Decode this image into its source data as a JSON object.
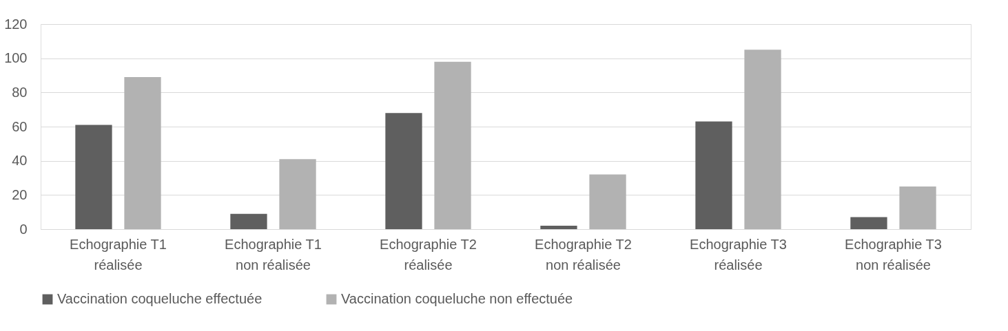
{
  "chart_data": {
    "type": "bar",
    "categories": [
      "Echographie T1 réalisée",
      "Echographie T1 non réalisée",
      "Echographie T2 réalisée",
      "Echographie T2 non réalisée",
      "Echographie T3 réalisée",
      "Echographie T3 non réalisée"
    ],
    "series": [
      {
        "name": "Vaccination coqueluche effectuée",
        "color": "#5f5f5f",
        "values": [
          61,
          9,
          68,
          2,
          63,
          7
        ]
      },
      {
        "name": "Vaccination coqueluche non effectuée",
        "color": "#b2b2b2",
        "values": [
          89,
          41,
          98,
          32,
          105,
          25
        ]
      }
    ],
    "ylim": [
      0,
      120
    ],
    "yticks": [
      0,
      20,
      40,
      60,
      80,
      100,
      120
    ],
    "grid": "y",
    "legend": "bottom"
  }
}
